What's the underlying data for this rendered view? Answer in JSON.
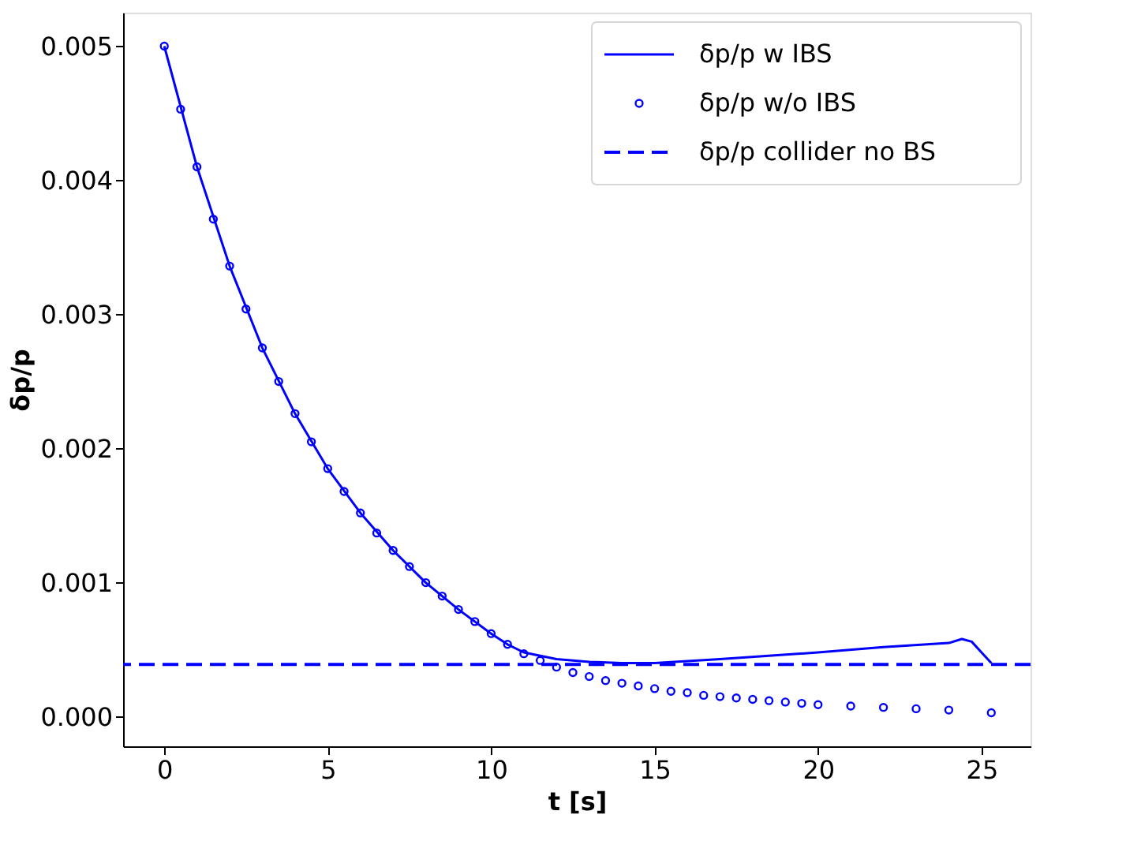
{
  "chart_data": {
    "type": "line",
    "xlabel": "t [s]",
    "ylabel": "δp/p",
    "xlim": [
      -1.26,
      26.5
    ],
    "ylim": [
      -0.00022,
      0.00525
    ],
    "xticks": [
      0,
      5,
      10,
      15,
      20,
      25
    ],
    "yticks": [
      {
        "value": 0,
        "label": "0.000"
      },
      {
        "value": 0.001,
        "label": "0.001"
      },
      {
        "value": 0.002,
        "label": "0.002"
      },
      {
        "value": 0.003,
        "label": "0.003"
      },
      {
        "value": 0.004,
        "label": "0.004"
      },
      {
        "value": 0.005,
        "label": "0.005"
      }
    ],
    "grid": false,
    "legend": "top right",
    "series": [
      {
        "name": "δp/p w IBS",
        "line_style": "solid",
        "color": "#0000ff",
        "x": [
          0,
          1,
          2,
          3,
          4,
          5,
          6,
          7,
          8,
          9,
          10,
          10.5,
          11,
          12,
          13,
          14,
          15,
          17,
          20,
          22,
          24,
          24.4,
          24.7,
          25,
          25.3
        ],
        "values": [
          0.005,
          0.0041,
          0.00336,
          0.00275,
          0.00226,
          0.00185,
          0.00152,
          0.00124,
          0.001,
          0.0008,
          0.00062,
          0.00054,
          0.00048,
          0.00043,
          0.00041,
          0.0004,
          0.0004,
          0.00043,
          0.00048,
          0.00052,
          0.00055,
          0.00058,
          0.00056,
          0.00048,
          0.0004
        ]
      },
      {
        "name": "δp/p w/o IBS",
        "type": "scatter",
        "marker": "circle",
        "color": "#0000ff",
        "x": [
          0,
          0.5,
          1,
          1.5,
          2,
          2.5,
          3,
          3.5,
          4,
          4.5,
          5,
          5.5,
          6,
          6.5,
          7,
          7.5,
          8,
          8.5,
          9,
          9.5,
          10,
          10.5,
          11,
          11.5,
          12,
          12.5,
          13,
          13.5,
          14,
          14.5,
          15,
          15.5,
          16,
          16.5,
          17,
          17.5,
          18,
          18.5,
          19,
          19.5,
          20,
          21,
          22,
          23,
          24,
          25.3
        ],
        "values": [
          0.005,
          0.00453,
          0.0041,
          0.00371,
          0.00336,
          0.00304,
          0.00275,
          0.0025,
          0.00226,
          0.00205,
          0.00185,
          0.00168,
          0.00152,
          0.00137,
          0.00124,
          0.00112,
          0.001,
          0.0009,
          0.0008,
          0.00071,
          0.00062,
          0.00054,
          0.00047,
          0.00042,
          0.00037,
          0.00033,
          0.0003,
          0.00027,
          0.00025,
          0.00023,
          0.00021,
          0.00019,
          0.00018,
          0.00016,
          0.00015,
          0.00014,
          0.00013,
          0.00012,
          0.00011,
          0.0001,
          9e-05,
          8e-05,
          7e-05,
          6e-05,
          5e-05,
          3e-05
        ]
      }
    ],
    "ref_lines": [
      {
        "axis": "y",
        "value": 0.00039,
        "label": "δp/p collider no BS",
        "color": "#0000ff",
        "line_style": "dashed"
      }
    ]
  }
}
